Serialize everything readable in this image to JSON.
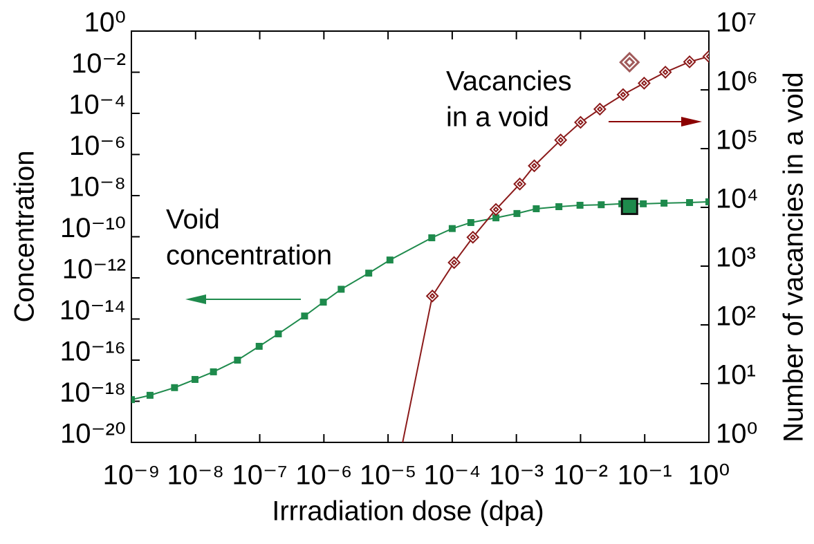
{
  "chart_data": {
    "type": "line",
    "xlabel": "Irrradiation dose (dpa)",
    "ylabel": "Concentration",
    "y2label": "Number of vacancies in a void",
    "xscale": "log",
    "yscale": "log",
    "y2scale": "log",
    "xlim": [
      1e-09,
      1
    ],
    "ylim": [
      1e-20,
      1
    ],
    "y2lim": [
      1,
      10000000.0
    ],
    "xticks": [
      {
        "value": 1e-09,
        "label": "10⁻⁹"
      },
      {
        "value": 1e-08,
        "label": "10⁻⁸"
      },
      {
        "value": 1e-07,
        "label": "10⁻⁷"
      },
      {
        "value": 1e-06,
        "label": "10⁻⁶"
      },
      {
        "value": 1e-05,
        "label": "10⁻⁵"
      },
      {
        "value": 0.0001,
        "label": "10⁻⁴"
      },
      {
        "value": 0.001,
        "label": "10⁻³"
      },
      {
        "value": 0.01,
        "label": "10⁻²"
      },
      {
        "value": 0.1,
        "label": "10⁻¹"
      },
      {
        "value": 1,
        "label": "10⁰"
      }
    ],
    "yticks": [
      {
        "value": 1e-20,
        "label": "10⁻²⁰"
      },
      {
        "value": 1e-18,
        "label": "10⁻¹⁸"
      },
      {
        "value": 1e-16,
        "label": "10⁻¹⁶"
      },
      {
        "value": 1e-14,
        "label": "10⁻¹⁴"
      },
      {
        "value": 1e-12,
        "label": "10⁻¹²"
      },
      {
        "value": 1e-10,
        "label": "10⁻¹⁰"
      },
      {
        "value": 1e-08,
        "label": "10⁻⁸"
      },
      {
        "value": 1e-06,
        "label": "10⁻⁶"
      },
      {
        "value": 0.0001,
        "label": "10⁻⁴"
      },
      {
        "value": 0.01,
        "label": "10⁻²"
      },
      {
        "value": 1,
        "label": "10⁰"
      }
    ],
    "y2ticks": [
      {
        "value": 1,
        "label": "10⁰"
      },
      {
        "value": 10,
        "label": "10¹"
      },
      {
        "value": 100,
        "label": "10²"
      },
      {
        "value": 1000,
        "label": "10³"
      },
      {
        "value": 10000,
        "label": "10⁴"
      },
      {
        "value": 100000,
        "label": "10⁵"
      },
      {
        "value": 1000000,
        "label": "10⁶"
      },
      {
        "value": 10000000,
        "label": "10⁷"
      }
    ],
    "annotations": [
      {
        "lines": [
          "Void",
          "concentration"
        ],
        "arrow": "left",
        "color": "#1e8a4c"
      },
      {
        "lines": [
          "Vacancies",
          "in a void"
        ],
        "arrow": "right",
        "color": "#8b0000"
      }
    ],
    "series": [
      {
        "axis": "y",
        "color": "#1e8a4c",
        "marker": "square",
        "x": [
          1e-09,
          1.95e-09,
          4.7e-09,
          9.8e-09,
          1.9e-08,
          4.5e-08,
          9.8e-08,
          1.95e-07,
          5e-07,
          9.8e-07,
          1.86e-06,
          5e-06,
          1.07e-05,
          4.8e-05,
          0.0001,
          0.000195,
          0.00048,
          0.00102,
          0.00204,
          0.0046,
          0.0098,
          0.021,
          0.044,
          0.095,
          0.2,
          0.5,
          1
        ],
        "values": [
          1.2e-18,
          1.95e-18,
          4.6e-18,
          1.15e-17,
          2.7e-17,
          1e-16,
          4.7e-16,
          1.9e-15,
          1.4e-14,
          6.6e-14,
          2.8e-13,
          1.7e-12,
          7.4e-12,
          8.9e-11,
          2.5e-10,
          4.9e-10,
          8.3e-10,
          1.35e-09,
          2.3e-09,
          2.9e-09,
          3.4e-09,
          3.6e-09,
          4e-09,
          4e-09,
          4.3e-09,
          4.6e-09,
          5e-09
        ]
      },
      {
        "axis": "y2",
        "color": "#8b1a1a",
        "marker": "diamond",
        "x": [
          1e-05,
          4.9e-05,
          0.000107,
          0.00021,
          0.00048,
          0.00113,
          0.0019,
          0.0049,
          0.01,
          0.02,
          0.046,
          0.098,
          0.21,
          0.5,
          1
        ],
        "values": [
          0.06,
          310,
          1150,
          3100,
          9200,
          25000,
          51000,
          140000,
          280000,
          470000,
          830000,
          1300000,
          2000000,
          3000000,
          3700000
        ]
      },
      {
        "axis": "y",
        "color": "#1e8a4c",
        "marker": "big-square",
        "x": [
          0.058
        ],
        "values": [
          3e-09
        ]
      },
      {
        "axis": "y2",
        "color": "#a05a5a",
        "marker": "big-diamond",
        "x": [
          0.058
        ],
        "values": [
          2950000
        ]
      }
    ]
  }
}
